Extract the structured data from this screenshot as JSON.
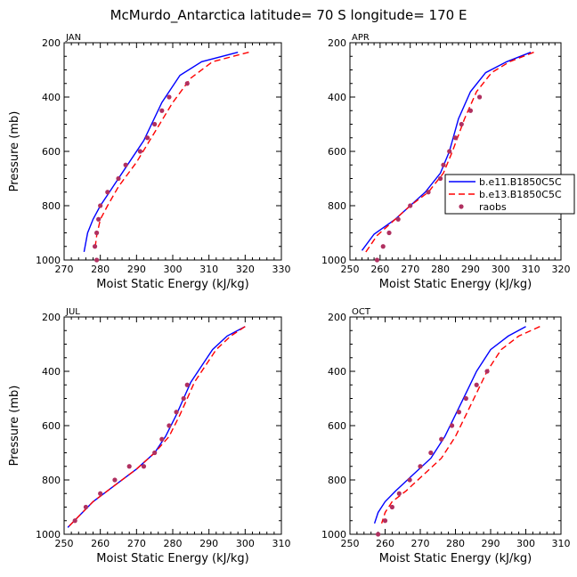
{
  "title": "McMurdo_Antarctica  latitude= 70 S longitude= 170 E",
  "colors": {
    "b11": "#0000ff",
    "b13": "#ff0000",
    "raobs": "#b03060"
  },
  "legend": {
    "entries": [
      {
        "label": "b.e11.B1850C5C",
        "style": "solid"
      },
      {
        "label": "b.e13.B1850C5C",
        "style": "dashed"
      },
      {
        "label": "raobs",
        "style": "marker"
      }
    ]
  },
  "chart_data": [
    {
      "type": "line",
      "panel": "JAN",
      "xlabel": "Moist Static Energy (kJ/kg)",
      "ylabel": "Pressure (mb)",
      "xlim": [
        270,
        330
      ],
      "ylim": [
        1000,
        200
      ],
      "xticks": [
        270,
        280,
        290,
        300,
        310,
        320,
        330
      ],
      "yticks": [
        200,
        400,
        600,
        800,
        1000
      ],
      "series": [
        {
          "name": "b.e11.B1850C5C",
          "points": [
            [
              318,
              235
            ],
            [
              308,
              270
            ],
            [
              302,
              320
            ],
            [
              297,
              420
            ],
            [
              292,
              560
            ],
            [
              287,
              660
            ],
            [
              283,
              740
            ],
            [
              280,
              800
            ],
            [
              278,
              850
            ],
            [
              276.5,
              900
            ],
            [
              275.5,
              970
            ]
          ]
        },
        {
          "name": "b.e13.B1850C5C",
          "points": [
            [
              321,
              235
            ],
            [
              311,
              270
            ],
            [
              305,
              330
            ],
            [
              300,
              420
            ],
            [
              295,
              530
            ],
            [
              290,
              640
            ],
            [
              285,
              730
            ],
            [
              282,
              800
            ],
            [
              280,
              850
            ],
            [
              279,
              910
            ],
            [
              278.5,
              960
            ]
          ]
        },
        {
          "name": "raobs",
          "points": [
            [
              304,
              350
            ],
            [
              299,
              400
            ],
            [
              297,
              450
            ],
            [
              295,
              500
            ],
            [
              293,
              550
            ],
            [
              291,
              600
            ],
            [
              287,
              650
            ],
            [
              285,
              700
            ],
            [
              282,
              750
            ],
            [
              280,
              800
            ],
            [
              279.5,
              850
            ],
            [
              279,
              900
            ],
            [
              278.5,
              950
            ],
            [
              279,
              1000
            ]
          ]
        }
      ]
    },
    {
      "type": "line",
      "panel": "APR",
      "xlabel": "Moist Static Energy (kJ/kg)",
      "ylabel": "Pressure (mb)",
      "xlim": [
        250,
        320
      ],
      "ylim": [
        1000,
        200
      ],
      "xticks": [
        250,
        260,
        270,
        280,
        290,
        300,
        310,
        320
      ],
      "yticks": [
        200,
        400,
        600,
        800,
        1000
      ],
      "series": [
        {
          "name": "b.e11.B1850C5C",
          "points": [
            [
              310,
              235
            ],
            [
              302,
              270
            ],
            [
              295,
              310
            ],
            [
              290,
              380
            ],
            [
              286,
              480
            ],
            [
              283,
              600
            ],
            [
              280,
              680
            ],
            [
              275,
              750
            ],
            [
              270,
              800
            ],
            [
              265,
              850
            ],
            [
              258,
              905
            ],
            [
              254,
              965
            ]
          ]
        },
        {
          "name": "b.e13.B1850C5C",
          "points": [
            [
              311,
              235
            ],
            [
              303,
              270
            ],
            [
              297,
              310
            ],
            [
              292,
              380
            ],
            [
              288,
              480
            ],
            [
              284,
              600
            ],
            [
              281,
              680
            ],
            [
              276,
              750
            ],
            [
              270,
              800
            ],
            [
              265,
              850
            ],
            [
              259,
              910
            ],
            [
              255,
              975
            ]
          ]
        },
        {
          "name": "raobs",
          "points": [
            [
              293,
              400
            ],
            [
              290,
              450
            ],
            [
              287,
              500
            ],
            [
              285,
              550
            ],
            [
              283,
              600
            ],
            [
              281,
              650
            ],
            [
              280,
              700
            ],
            [
              276,
              750
            ],
            [
              270,
              800
            ],
            [
              266,
              850
            ],
            [
              263,
              900
            ],
            [
              261,
              950
            ],
            [
              259,
              1000
            ]
          ]
        }
      ]
    },
    {
      "type": "line",
      "panel": "JUL",
      "xlabel": "Moist Static Energy (kJ/kg)",
      "ylabel": "Pressure (mb)",
      "xlim": [
        250,
        310
      ],
      "ylim": [
        1000,
        200
      ],
      "xticks": [
        250,
        260,
        270,
        280,
        290,
        300,
        310
      ],
      "yticks": [
        200,
        400,
        600,
        800,
        1000
      ],
      "series": [
        {
          "name": "b.e11.B1850C5C",
          "points": [
            [
              300,
              235
            ],
            [
              295,
              270
            ],
            [
              291,
              320
            ],
            [
              288,
              380
            ],
            [
              285,
              440
            ],
            [
              283,
              500
            ],
            [
              281,
              560
            ],
            [
              278,
              640
            ],
            [
              275,
              700
            ],
            [
              270,
              760
            ],
            [
              264,
              820
            ],
            [
              258,
              880
            ],
            [
              251,
              975
            ]
          ]
        },
        {
          "name": "b.e13.B1850C5C",
          "points": [
            [
              300,
              235
            ],
            [
              296,
              270
            ],
            [
              292,
              320
            ],
            [
              289,
              380
            ],
            [
              286,
              440
            ],
            [
              284,
              500
            ],
            [
              282,
              560
            ],
            [
              279,
              640
            ],
            [
              275,
              700
            ],
            [
              270,
              760
            ],
            [
              264,
              820
            ],
            [
              258,
              880
            ],
            [
              251,
              975
            ]
          ]
        },
        {
          "name": "raobs",
          "points": [
            [
              284,
              450
            ],
            [
              283,
              500
            ],
            [
              281,
              550
            ],
            [
              279,
              600
            ],
            [
              277,
              650
            ],
            [
              275,
              700
            ],
            [
              272,
              750
            ],
            [
              268,
              750
            ],
            [
              264,
              800
            ],
            [
              260,
              850
            ],
            [
              256,
              900
            ],
            [
              253,
              950
            ]
          ]
        }
      ]
    },
    {
      "type": "line",
      "panel": "OCT",
      "xlabel": "Moist Static Energy (kJ/kg)",
      "ylabel": "Pressure (mb)",
      "xlim": [
        250,
        310
      ],
      "ylim": [
        1000,
        200
      ],
      "xticks": [
        250,
        260,
        270,
        280,
        290,
        300,
        310
      ],
      "yticks": [
        200,
        400,
        600,
        800,
        1000
      ],
      "series": [
        {
          "name": "b.e11.B1850C5C",
          "points": [
            [
              300,
              235
            ],
            [
              295,
              270
            ],
            [
              290,
              320
            ],
            [
              286,
              400
            ],
            [
              283,
              480
            ],
            [
              280,
              560
            ],
            [
              277,
              640
            ],
            [
              273,
              720
            ],
            [
              268,
              780
            ],
            [
              263,
              840
            ],
            [
              260,
              880
            ],
            [
              258,
              920
            ],
            [
              257,
              960
            ]
          ]
        },
        {
          "name": "b.e13.B1850C5C",
          "points": [
            [
              304,
              235
            ],
            [
              298,
              270
            ],
            [
              293,
              320
            ],
            [
              289,
              400
            ],
            [
              286,
              480
            ],
            [
              283,
              560
            ],
            [
              280,
              640
            ],
            [
              276,
              720
            ],
            [
              271,
              780
            ],
            [
              266,
              840
            ],
            [
              262,
              880
            ],
            [
              260,
              920
            ],
            [
              259,
              960
            ]
          ]
        },
        {
          "name": "raobs",
          "points": [
            [
              289,
              400
            ],
            [
              286,
              450
            ],
            [
              283,
              500
            ],
            [
              281,
              550
            ],
            [
              279,
              600
            ],
            [
              276,
              650
            ],
            [
              273,
              700
            ],
            [
              270,
              750
            ],
            [
              267,
              800
            ],
            [
              264,
              850
            ],
            [
              262,
              900
            ],
            [
              260,
              950
            ],
            [
              258,
              1000
            ]
          ]
        }
      ]
    }
  ]
}
